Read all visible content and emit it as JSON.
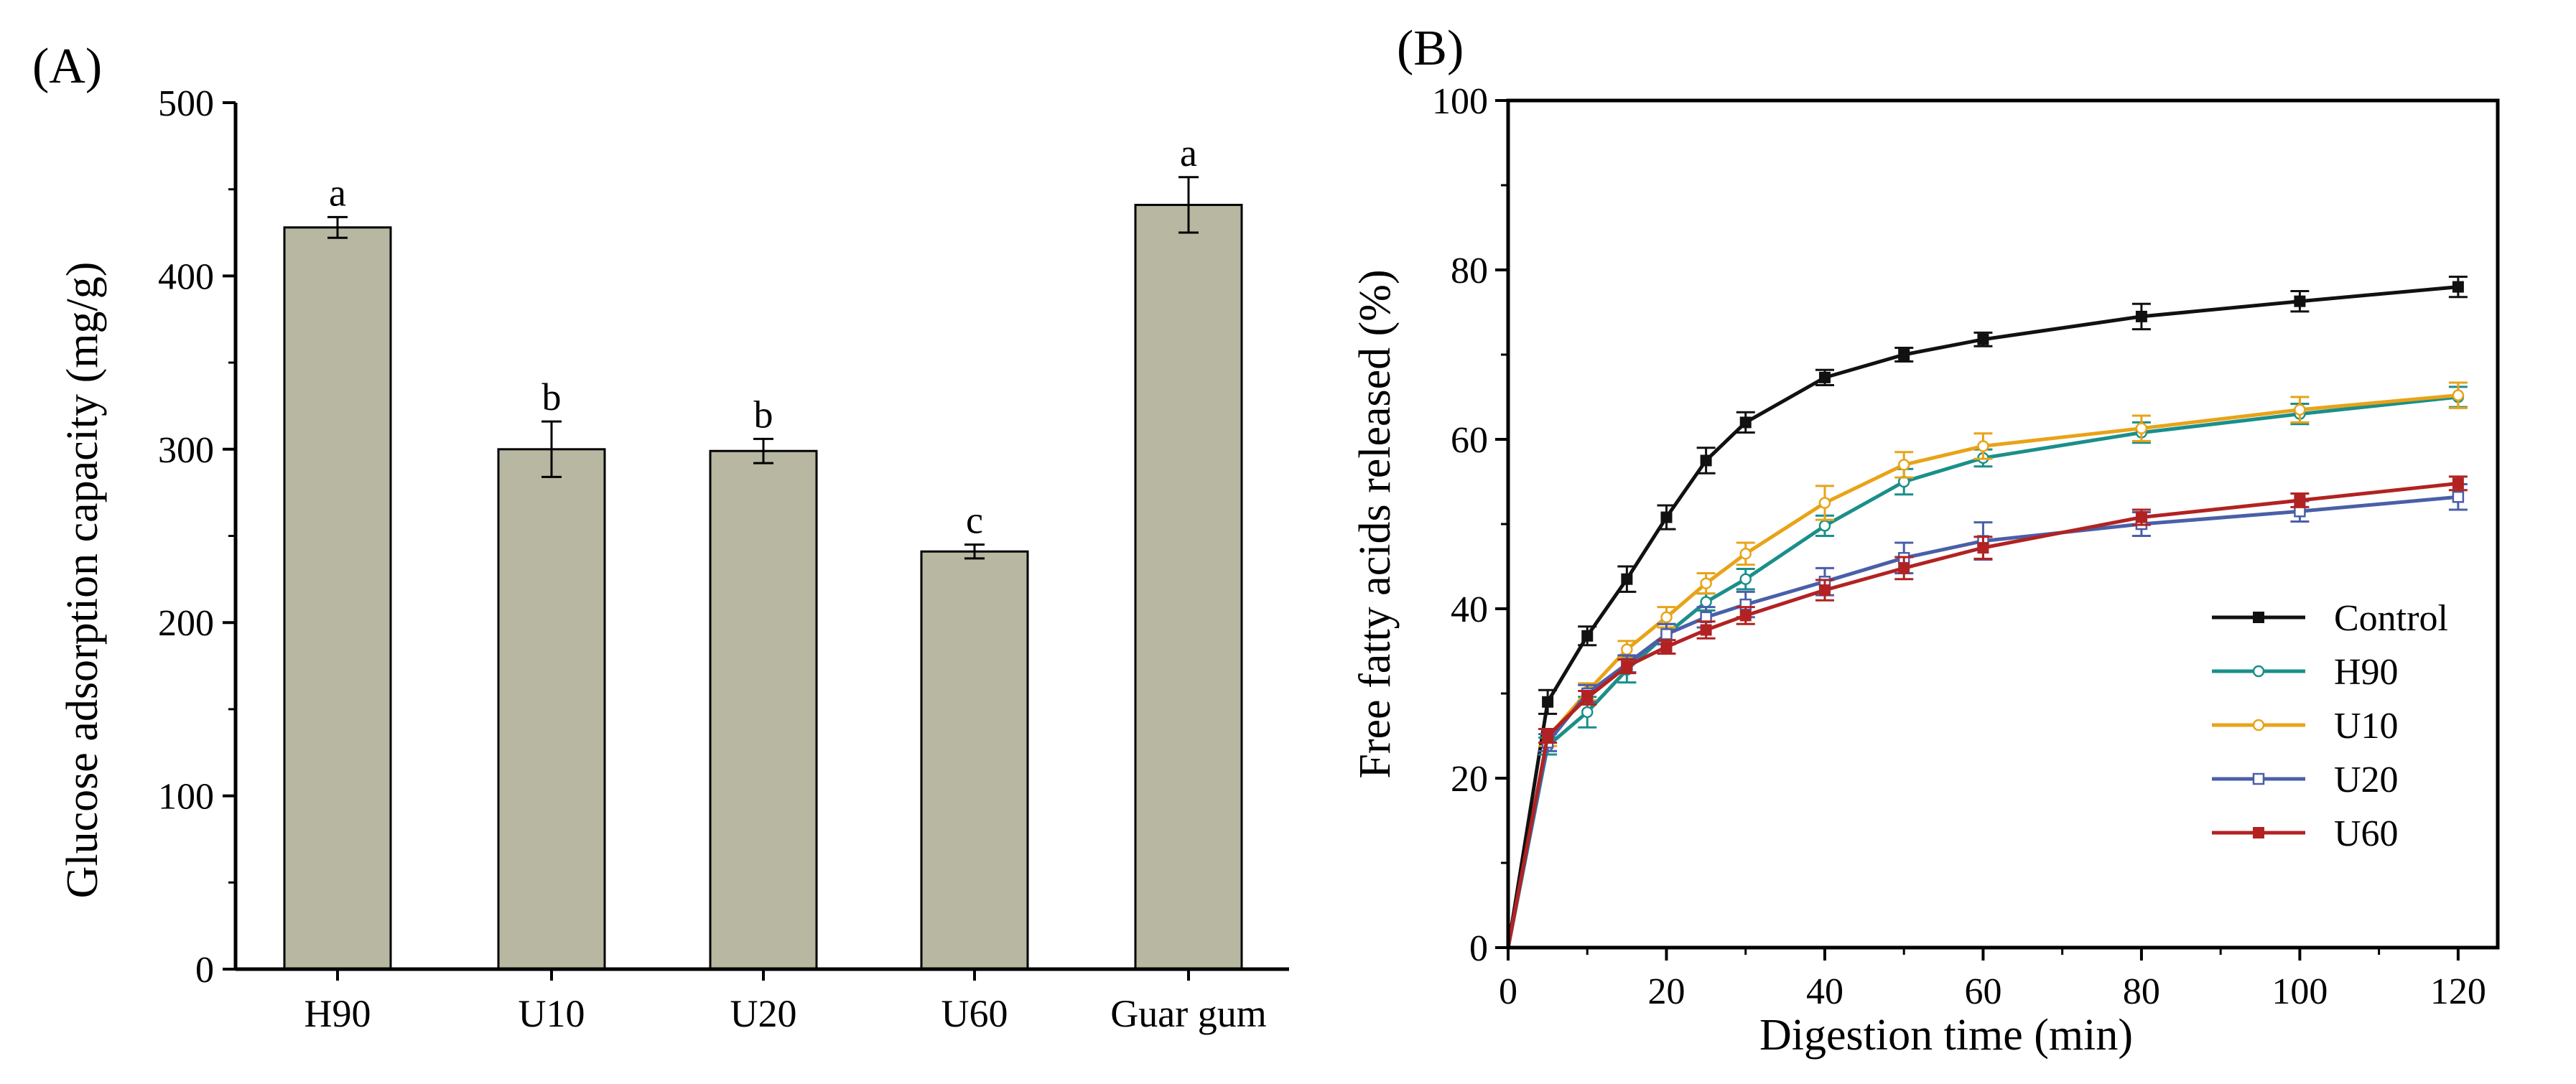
{
  "chart_data": [
    {
      "panel": "(A)",
      "type": "bar",
      "title": "",
      "xlabel": "",
      "ylabel": "Glucose adsorption capacity (mg/g)",
      "ylim": [
        0,
        500
      ],
      "yticks": [
        0,
        100,
        200,
        300,
        400,
        500
      ],
      "categories": [
        "H90",
        "U10",
        "U20",
        "U60",
        "Guar gum"
      ],
      "values": [
        428,
        300,
        299,
        241,
        441
      ],
      "errors": [
        6,
        16,
        7,
        4,
        16
      ],
      "letters": [
        "a",
        "b",
        "b",
        "c",
        "a"
      ],
      "bar_color": "#b8b7a1"
    },
    {
      "panel": "(B)",
      "type": "line",
      "title": "",
      "xlabel": "Digestion time (min)",
      "ylabel": "Free fatty acids released (%)",
      "xlim": [
        0,
        125
      ],
      "ylim": [
        0,
        100
      ],
      "xticks": [
        0,
        20,
        40,
        60,
        80,
        100,
        120
      ],
      "yticks": [
        0,
        20,
        40,
        60,
        80,
        100
      ],
      "x": [
        0,
        5,
        10,
        15,
        20,
        25,
        30,
        40,
        50,
        60,
        80,
        100,
        120
      ],
      "series": [
        {
          "name": "Control",
          "color": "#111111",
          "marker": "filled-square",
          "values": [
            0,
            29,
            36.8,
            43.5,
            50.8,
            57.5,
            62,
            67.3,
            70,
            71.8,
            74.5,
            76.3,
            78
          ],
          "errors": [
            0,
            1.4,
            1.1,
            1.5,
            1.4,
            1.5,
            1.2,
            0.9,
            0.8,
            0.8,
            1.5,
            1.2,
            1.2
          ]
        },
        {
          "name": "H90",
          "color": "#1a8f8a",
          "marker": "open-circle",
          "values": [
            0,
            23.8,
            27.8,
            32.8,
            37,
            40.8,
            43.5,
            49.8,
            55,
            57.8,
            60.8,
            63,
            65
          ],
          "errors": [
            0,
            1.0,
            1.8,
            1.5,
            1.2,
            1.0,
            1.2,
            1.2,
            1.5,
            1.0,
            1.2,
            1.2,
            1.2
          ]
        },
        {
          "name": "U10",
          "color": "#e8a317",
          "marker": "open-circle",
          "values": [
            0,
            24.8,
            30.2,
            35.2,
            39,
            43,
            46.5,
            52.5,
            57,
            59.2,
            61.3,
            63.5,
            65.2
          ],
          "errors": [
            0,
            1.0,
            1.0,
            1.0,
            1.2,
            1.2,
            1.3,
            2.0,
            1.5,
            1.5,
            1.5,
            1.5,
            1.5
          ]
        },
        {
          "name": "U20",
          "color": "#4a5fa8",
          "marker": "open-square",
          "values": [
            0,
            24.2,
            30,
            33.5,
            37,
            39,
            40.5,
            43.2,
            46,
            48,
            50,
            51.5,
            53.2
          ],
          "errors": [
            0,
            1.0,
            1.0,
            1.0,
            1.2,
            1.2,
            1.5,
            1.6,
            1.8,
            2.2,
            1.4,
            1.2,
            1.5
          ]
        },
        {
          "name": "U60",
          "color": "#b22222",
          "marker": "filled-square",
          "values": [
            0,
            25,
            29.5,
            33.2,
            35.5,
            37.5,
            39.2,
            42.2,
            44.8,
            47.2,
            50.8,
            52.8,
            54.8
          ],
          "errors": [
            0,
            0.8,
            0.8,
            0.8,
            0.8,
            1.0,
            1.0,
            1.2,
            1.3,
            1.3,
            0.9,
            0.8,
            0.8
          ]
        }
      ],
      "legend_position": "lower-right"
    }
  ]
}
